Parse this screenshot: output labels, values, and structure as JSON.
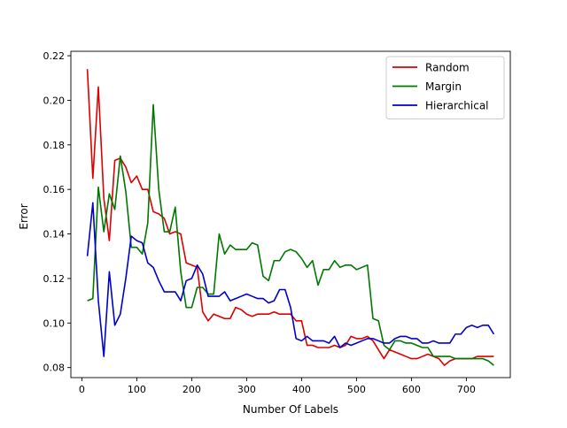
{
  "chart_data": {
    "type": "line",
    "title": "",
    "xlabel": "Number Of Labels",
    "ylabel": "Error",
    "xlim": [
      -20,
      780
    ],
    "ylim": [
      0.0755,
      0.222
    ],
    "xticks": [
      0,
      100,
      200,
      300,
      400,
      500,
      600,
      700
    ],
    "xtick_labels": [
      "0",
      "100",
      "200",
      "300",
      "400",
      "500",
      "600",
      "700"
    ],
    "yticks": [
      0.08,
      0.1,
      0.12,
      0.14,
      0.16,
      0.18,
      0.2,
      0.22
    ],
    "ytick_labels": [
      "0.08",
      "0.10",
      "0.12",
      "0.14",
      "0.16",
      "0.18",
      "0.20",
      "0.22"
    ],
    "grid": false,
    "legend_position": "top-right",
    "series": [
      {
        "name": "Random",
        "color": "#dd0000",
        "x": [
          10,
          20,
          30,
          40,
          50,
          60,
          70,
          80,
          90,
          100,
          110,
          120,
          130,
          140,
          150,
          160,
          170,
          180,
          190,
          200,
          210,
          220,
          230,
          240,
          250,
          260,
          270,
          280,
          290,
          300,
          310,
          320,
          330,
          340,
          350,
          360,
          370,
          380,
          390,
          400,
          410,
          420,
          430,
          440,
          450,
          460,
          470,
          480,
          490,
          500,
          510,
          520,
          530,
          540,
          550,
          560,
          570,
          580,
          590,
          600,
          610,
          620,
          630,
          640,
          650,
          660,
          670,
          680,
          690,
          700,
          710,
          720,
          730,
          740,
          750
        ],
        "values": [
          0.214,
          0.165,
          0.206,
          0.156,
          0.137,
          0.173,
          0.174,
          0.17,
          0.163,
          0.166,
          0.16,
          0.16,
          0.15,
          0.149,
          0.147,
          0.14,
          0.141,
          0.14,
          0.127,
          0.126,
          0.125,
          0.105,
          0.101,
          0.104,
          0.103,
          0.102,
          0.102,
          0.107,
          0.106,
          0.104,
          0.103,
          0.104,
          0.104,
          0.104,
          0.105,
          0.104,
          0.104,
          0.104,
          0.101,
          0.101,
          0.09,
          0.09,
          0.089,
          0.089,
          0.089,
          0.09,
          0.089,
          0.09,
          0.094,
          0.093,
          0.093,
          0.094,
          0.092,
          0.088,
          0.084,
          0.088,
          0.087,
          0.086,
          0.085,
          0.084,
          0.084,
          0.085,
          0.086,
          0.085,
          0.084,
          0.081,
          0.083,
          0.084,
          0.084,
          0.084,
          0.084,
          0.085,
          0.085,
          0.085,
          0.085
        ]
      },
      {
        "name": "Margin",
        "color": "#007700",
        "x": [
          10,
          20,
          30,
          40,
          50,
          60,
          70,
          80,
          90,
          100,
          110,
          120,
          130,
          140,
          150,
          160,
          170,
          180,
          190,
          200,
          210,
          220,
          230,
          240,
          250,
          260,
          270,
          280,
          290,
          300,
          310,
          320,
          330,
          340,
          350,
          360,
          370,
          380,
          390,
          400,
          410,
          420,
          430,
          440,
          450,
          460,
          470,
          480,
          490,
          500,
          510,
          520,
          530,
          540,
          550,
          560,
          570,
          580,
          590,
          600,
          610,
          620,
          630,
          640,
          650,
          660,
          670,
          680,
          690,
          700,
          710,
          720,
          730,
          740,
          750
        ],
        "values": [
          0.11,
          0.111,
          0.161,
          0.141,
          0.158,
          0.151,
          0.175,
          0.159,
          0.134,
          0.134,
          0.131,
          0.145,
          0.198,
          0.16,
          0.141,
          0.141,
          0.152,
          0.123,
          0.107,
          0.107,
          0.116,
          0.116,
          0.113,
          0.113,
          0.14,
          0.131,
          0.135,
          0.133,
          0.133,
          0.133,
          0.136,
          0.135,
          0.121,
          0.119,
          0.128,
          0.128,
          0.132,
          0.133,
          0.132,
          0.129,
          0.125,
          0.128,
          0.117,
          0.124,
          0.124,
          0.128,
          0.125,
          0.126,
          0.126,
          0.124,
          0.125,
          0.126,
          0.102,
          0.101,
          0.09,
          0.088,
          0.092,
          0.092,
          0.091,
          0.091,
          0.09,
          0.089,
          0.089,
          0.085,
          0.085,
          0.085,
          0.085,
          0.084,
          0.084,
          0.084,
          0.084,
          0.084,
          0.084,
          0.083,
          0.081
        ]
      },
      {
        "name": "Hierarchical",
        "color": "#0000cc",
        "x": [
          10,
          20,
          30,
          40,
          50,
          60,
          70,
          80,
          90,
          100,
          110,
          120,
          130,
          140,
          150,
          160,
          170,
          180,
          190,
          200,
          210,
          220,
          230,
          240,
          250,
          260,
          270,
          280,
          290,
          300,
          310,
          320,
          330,
          340,
          350,
          360,
          370,
          380,
          390,
          400,
          410,
          420,
          430,
          440,
          450,
          460,
          470,
          480,
          490,
          500,
          510,
          520,
          530,
          540,
          550,
          560,
          570,
          580,
          590,
          600,
          610,
          620,
          630,
          640,
          650,
          660,
          670,
          680,
          690,
          700,
          710,
          720,
          730,
          740,
          750
        ],
        "values": [
          0.13,
          0.154,
          0.11,
          0.085,
          0.123,
          0.099,
          0.104,
          0.12,
          0.139,
          0.137,
          0.136,
          0.127,
          0.125,
          0.119,
          0.114,
          0.114,
          0.114,
          0.11,
          0.119,
          0.12,
          0.126,
          0.122,
          0.112,
          0.112,
          0.112,
          0.114,
          0.11,
          0.111,
          0.112,
          0.113,
          0.112,
          0.111,
          0.111,
          0.109,
          0.11,
          0.115,
          0.115,
          0.107,
          0.093,
          0.092,
          0.094,
          0.092,
          0.092,
          0.092,
          0.091,
          0.094,
          0.089,
          0.091,
          0.09,
          0.091,
          0.092,
          0.093,
          0.093,
          0.092,
          0.091,
          0.091,
          0.093,
          0.094,
          0.094,
          0.093,
          0.093,
          0.091,
          0.091,
          0.092,
          0.091,
          0.091,
          0.091,
          0.095,
          0.095,
          0.098,
          0.099,
          0.098,
          0.099,
          0.099,
          0.095
        ]
      }
    ]
  }
}
